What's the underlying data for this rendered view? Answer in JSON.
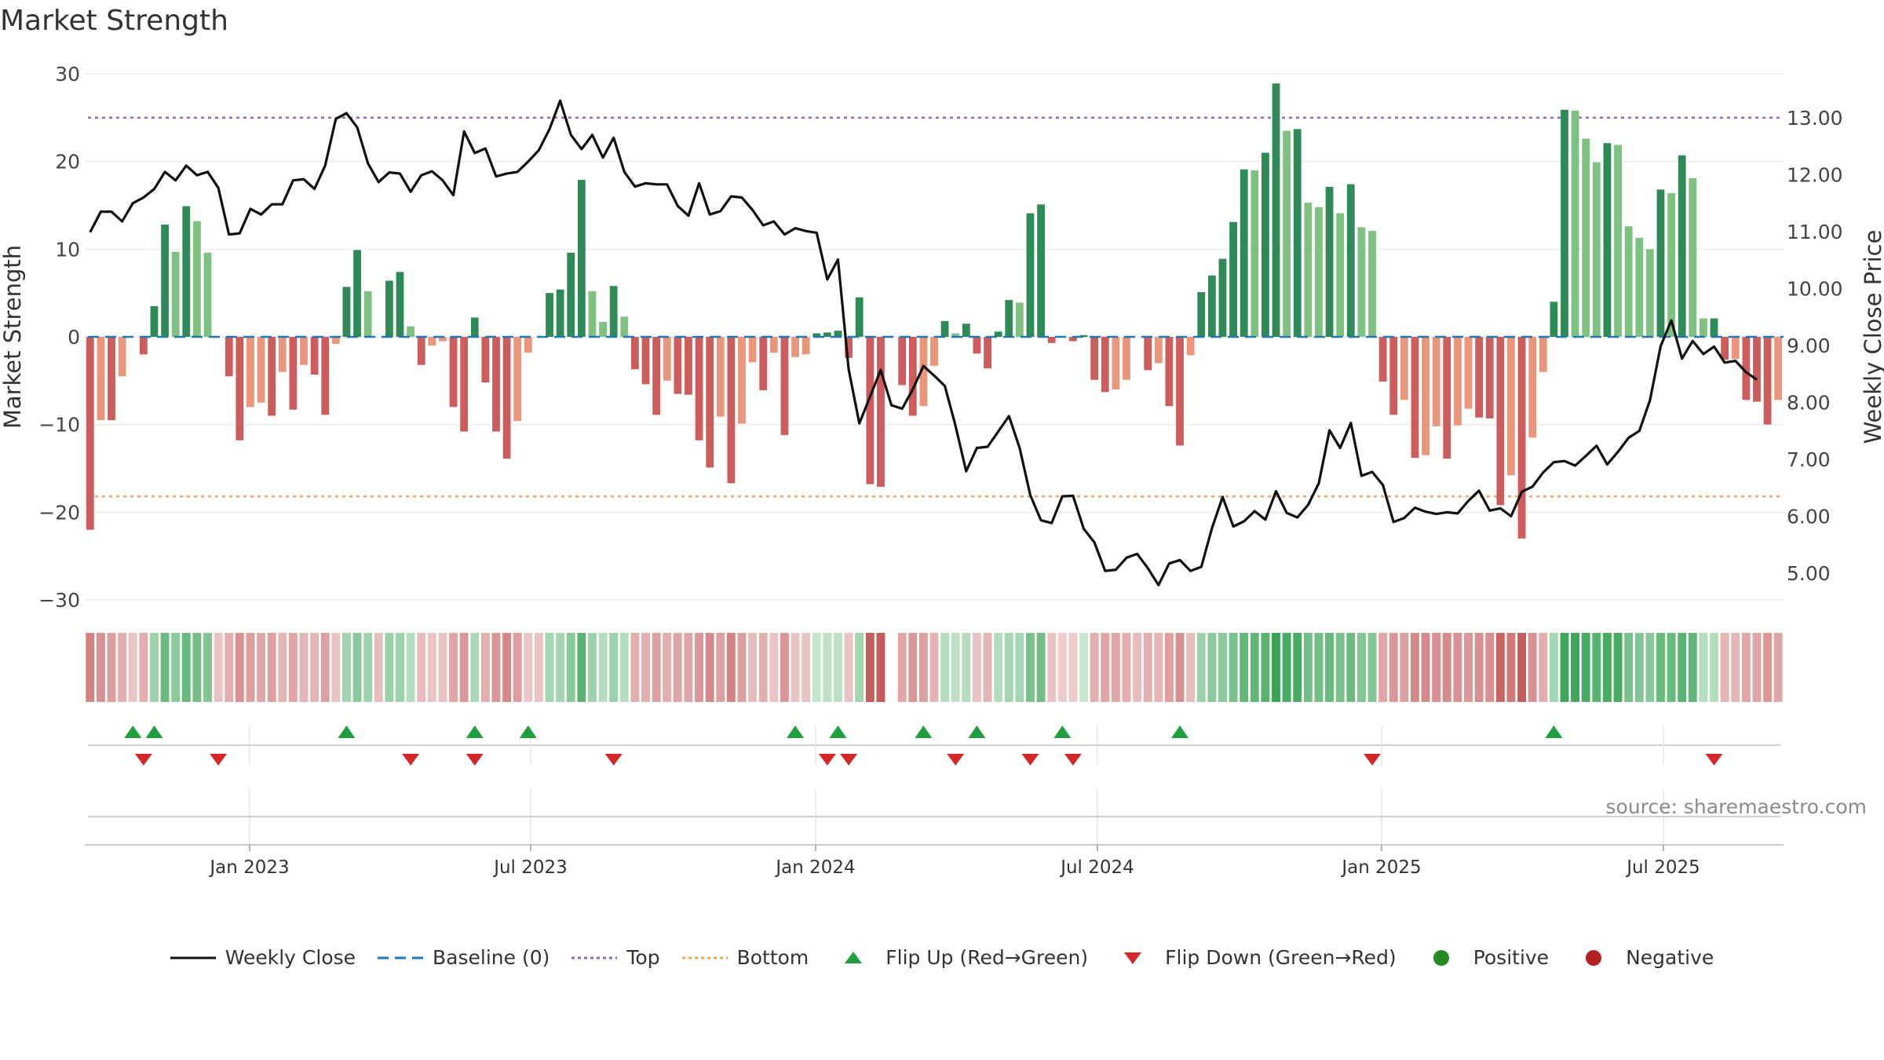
{
  "title": "Market Strength",
  "source": "source: sharemaestro.com",
  "colors": {
    "pos_strong": "#2e8b57",
    "pos_weak": "#7fc17f",
    "neg_strong": "#cd5c5c",
    "neg_weak": "#e9967a",
    "close_line": "#111111",
    "baseline": "#1f77b4",
    "top": "#9467bd",
    "bottom": "#f4a460",
    "flip_up": "#1f9e3e",
    "flip_down": "#d62728",
    "positive_dot": "#228b22",
    "negative_dot": "#b22222"
  },
  "legend": [
    {
      "label": "Weekly Close",
      "kind": "line"
    },
    {
      "label": "Baseline (0)",
      "kind": "dash"
    },
    {
      "label": "Top",
      "kind": "dot-purple"
    },
    {
      "label": "Bottom",
      "kind": "dot-orange"
    },
    {
      "label": "Flip Up (Red→Green)",
      "kind": "tri-up"
    },
    {
      "label": "Flip Down (Green→Red)",
      "kind": "tri-down"
    },
    {
      "label": "Positive",
      "kind": "circle-pos"
    },
    {
      "label": "Negative",
      "kind": "circle-neg"
    }
  ],
  "chart_data": {
    "type": "bar",
    "ylabel": "Market Strength",
    "y2label": "Weekly Close Price",
    "ylim": [
      -30,
      30
    ],
    "y2lim": [
      4.5,
      13.5
    ],
    "yticks": [
      "30",
      "20",
      "10",
      "0",
      "−10",
      "−20",
      "−30"
    ],
    "y2ticks": [
      "13.00",
      "12.00",
      "11.00",
      "10.00",
      "9.00",
      "8.00",
      "7.00",
      "6.00",
      "5.00"
    ],
    "xticks": [
      "Jan 2023",
      "Jul 2023",
      "Jan 2024",
      "Jul 2024",
      "Jan 2025",
      "Jul 2025"
    ],
    "top_threshold": 25,
    "bottom_threshold": -18.2,
    "strength": [
      -22,
      -9.5,
      -9.5,
      -4.5,
      0,
      -2,
      3.5,
      12.8,
      9.7,
      14.9,
      13.2,
      9.6,
      0,
      -4.5,
      -11.8,
      -8,
      -7.5,
      -9,
      -4,
      -8.3,
      -3.2,
      -4.3,
      -8.9,
      -0.8,
      5.7,
      9.9,
      5.2,
      0,
      6.4,
      7.4,
      1.2,
      -3.2,
      -1,
      -0.5,
      -8,
      -10.8,
      2.2,
      -5.2,
      -10.8,
      -13.9,
      -9.6,
      -1.8,
      0,
      5,
      5.4,
      9.6,
      17.9,
      5.2,
      1.7,
      5.8,
      2.3,
      -3.7,
      -5.4,
      -8.9,
      -5,
      -6.5,
      -6.6,
      -11.8,
      -14.9,
      -9.1,
      -16.7,
      -9.9,
      -2.9,
      -6.1,
      -1.8,
      -11.2,
      -2.3,
      -2,
      0.4,
      0.5,
      0.7,
      -2.4,
      4.5,
      -16.8,
      -17.1,
      0,
      -5.5,
      -9,
      -7.9,
      -3.3,
      1.8,
      0.4,
      1.5,
      -1.9,
      -3.6,
      0.6,
      4.2,
      3.9,
      14.1,
      15.1,
      -0.7,
      0,
      -0.5,
      0.2,
      -4.9,
      -6.3,
      -6,
      -4.9,
      0,
      -3.8,
      -3,
      -7.9,
      -12.4,
      -2.1,
      5.1,
      7,
      8.9,
      13.1,
      19.1,
      19,
      21,
      28.9,
      23.5,
      23.7,
      15.3,
      14.8,
      17.1,
      14.1,
      17.4,
      12.5,
      12.1,
      -5.1,
      -8.9,
      -7.2,
      -13.8,
      -13.5,
      -10.2,
      -13.9,
      -10.1,
      -8.2,
      -9.2,
      -9.3,
      -19.2,
      -15.8,
      -23,
      -11.5,
      -4,
      4,
      25.9,
      25.8,
      22.6,
      19.9,
      22.1,
      21.9,
      12.6,
      11.3,
      10,
      16.8,
      16.4,
      20.7,
      18.1,
      2.1,
      2.1,
      -2.6,
      -2.5,
      -7.2,
      -7.4,
      -10,
      -7.2
    ],
    "close": [
      10.99,
      11.35,
      11.35,
      11.18,
      11.5,
      11.6,
      11.75,
      12.05,
      11.9,
      12.16,
      11.99,
      12.05,
      11.77,
      10.95,
      10.97,
      11.4,
      11.3,
      11.48,
      11.48,
      11.9,
      11.92,
      11.75,
      12.16,
      12.98,
      13.08,
      12.83,
      12.2,
      11.87,
      12.04,
      12.02,
      11.7,
      11.99,
      12.06,
      11.9,
      11.64,
      12.76,
      12.38,
      12.46,
      11.97,
      12.02,
      12.05,
      12.23,
      12.43,
      12.8,
      13.3,
      12.7,
      12.45,
      12.7,
      12.3,
      12.65,
      12.05,
      11.79,
      11.85,
      11.83,
      11.83,
      11.45,
      11.28,
      11.85,
      11.3,
      11.36,
      11.62,
      11.6,
      11.38,
      11.11,
      11.18,
      10.95,
      11.06,
      11.01,
      10.98,
      10.16,
      10.51,
      8.58,
      7.63,
      8.1,
      8.57,
      7.95,
      7.89,
      8.23,
      8.64,
      8.47,
      8.29,
      7.59,
      6.79,
      7.2,
      7.22,
      7.49,
      7.76,
      7.2,
      6.37,
      5.93,
      5.88,
      6.35,
      6.36,
      5.78,
      5.54,
      5.04,
      5.06,
      5.27,
      5.34,
      5.09,
      4.79,
      5.17,
      5.23,
      5.04,
      5.11,
      5.79,
      6.34,
      5.82,
      5.91,
      6.09,
      5.94,
      6.44,
      6.06,
      5.98,
      6.2,
      6.58,
      7.51,
      7.2,
      7.64,
      6.71,
      6.78,
      6.55,
      5.9,
      5.97,
      6.15,
      6.08,
      6.04,
      6.07,
      6.05,
      6.27,
      6.45,
      6.1,
      6.14,
      6,
      6.43,
      6.52,
      6.77,
      6.95,
      6.97,
      6.89,
      7.06,
      7.24,
      6.91,
      7.13,
      7.38,
      7.5,
      8.04,
      8.99,
      9.44,
      8.77,
      9.08,
      8.85,
      8.98,
      8.7,
      8.73,
      8.53,
      8.4
    ],
    "heat_levels": [
      0.6,
      0.5,
      0.4,
      0.3,
      0.15,
      0.3,
      0.35,
      0.65,
      0.45,
      0.65,
      0.6,
      0.5,
      0.15,
      0.3,
      0.5,
      0.4,
      0.35,
      0.4,
      0.25,
      0.35,
      0.25,
      0.25,
      0.4,
      0.15,
      0.3,
      0.45,
      0.35,
      0.2,
      0.35,
      0.35,
      0.2,
      0.2,
      0.15,
      0.15,
      0.35,
      0.45,
      0.25,
      0.3,
      0.45,
      0.55,
      0.4,
      0.15,
      0.15,
      0.3,
      0.3,
      0.45,
      0.75,
      0.35,
      0.2,
      0.35,
      0.2,
      0.3,
      0.3,
      0.4,
      0.3,
      0.35,
      0.35,
      0.45,
      0.55,
      0.4,
      0.6,
      0.4,
      0.2,
      0.3,
      0.15,
      0.45,
      0.15,
      0.15,
      0.1,
      0.15,
      0.15,
      0.15,
      0.3,
      0.85,
      0.85,
      0,
      0.35,
      0.45,
      0.4,
      0.25,
      0.2,
      0.15,
      0.2,
      0.15,
      0.25,
      0.2,
      0.3,
      0.3,
      0.55,
      0.6,
      0.15,
      0.1,
      0.1,
      0.1,
      0.3,
      0.35,
      0.35,
      0.3,
      0.2,
      0.3,
      0.25,
      0.4,
      0.5,
      0.2,
      0.35,
      0.45,
      0.45,
      0.55,
      0.7,
      0.7,
      0.75,
      0.95,
      0.85,
      0.85,
      0.6,
      0.6,
      0.65,
      0.55,
      0.65,
      0.5,
      0.5,
      0.35,
      0.45,
      0.4,
      0.55,
      0.55,
      0.5,
      0.55,
      0.5,
      0.45,
      0.5,
      0.5,
      0.8,
      0.65,
      0.85,
      0.5,
      0.3,
      0.3,
      0.9,
      0.9,
      0.85,
      0.75,
      0.85,
      0.85,
      0.55,
      0.5,
      0.45,
      0.65,
      0.65,
      0.75,
      0.7,
      0.2,
      0.2,
      0.25,
      0.25,
      0.35,
      0.35,
      0.45,
      0.35
    ],
    "flip_up": [
      4,
      6,
      24,
      36,
      41,
      66,
      70,
      78,
      83,
      91,
      102,
      137
    ],
    "flip_down": [
      5,
      12,
      30,
      36,
      49,
      69,
      71,
      81,
      88,
      92,
      120,
      152
    ]
  }
}
